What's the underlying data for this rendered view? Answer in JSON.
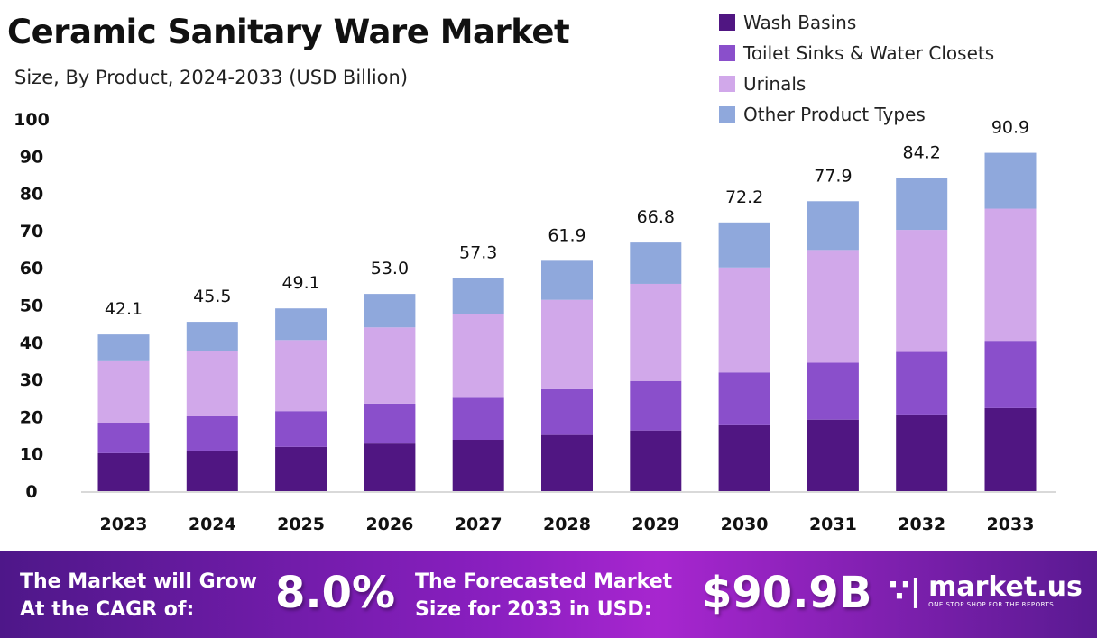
{
  "title": "Ceramic Sanitary Ware Market",
  "subtitle": "Size, By Product, 2024-2033 (USD Billion)",
  "colors": {
    "wash": "#501682",
    "toilet": "#8a4fcb",
    "urinals": "#d1a8ea",
    "other": "#8fa8dc"
  },
  "chart_data": {
    "type": "bar",
    "stacked": true,
    "categories": [
      "2023",
      "2024",
      "2025",
      "2026",
      "2027",
      "2028",
      "2029",
      "2030",
      "2031",
      "2032",
      "2033"
    ],
    "ylim": [
      0,
      100
    ],
    "yticks": [
      "0",
      "10",
      "20",
      "30",
      "40",
      "50",
      "60",
      "70",
      "80",
      "90",
      "100"
    ],
    "legend_position": "top-right",
    "grid": false,
    "series": [
      {
        "name": "Wash Basins",
        "color": "#501682",
        "values": [
          10.2,
          10.9,
          11.9,
          12.8,
          13.8,
          15.1,
          16.3,
          17.7,
          19.2,
          20.6,
          22.3
        ]
      },
      {
        "name": "Toilet Sinks & Water Closets",
        "color": "#8a4fcb",
        "values": [
          8.2,
          9.2,
          9.6,
          10.7,
          11.3,
          12.3,
          13.3,
          14.2,
          15.3,
          16.8,
          18.1
        ]
      },
      {
        "name": "Urinals",
        "color": "#d1a8ea",
        "values": [
          16.5,
          17.6,
          19.1,
          20.5,
          22.5,
          24.0,
          26.1,
          28.2,
          30.3,
          32.8,
          35.5
        ]
      },
      {
        "name": "Other Product Types",
        "color": "#8fa8dc",
        "values": [
          7.2,
          7.8,
          8.5,
          9.0,
          9.7,
          10.5,
          11.1,
          12.1,
          13.1,
          14.0,
          15.0
        ]
      }
    ],
    "totals": [
      "42.1",
      "45.5",
      "49.1",
      "53.0",
      "57.3",
      "61.9",
      "66.8",
      "72.2",
      "77.9",
      "84.2",
      "90.9"
    ]
  },
  "footer": {
    "cagr_line1": "The Market will Grow",
    "cagr_line2": "At the CAGR of:",
    "cagr_value": "8.0%",
    "forecast_line1": "The Forecasted Market",
    "forecast_line2": "Size for 2033 in USD:",
    "forecast_value": "$90.9B",
    "brand": "market.us",
    "brand_tagline": "ONE STOP SHOP FOR THE REPORTS"
  }
}
